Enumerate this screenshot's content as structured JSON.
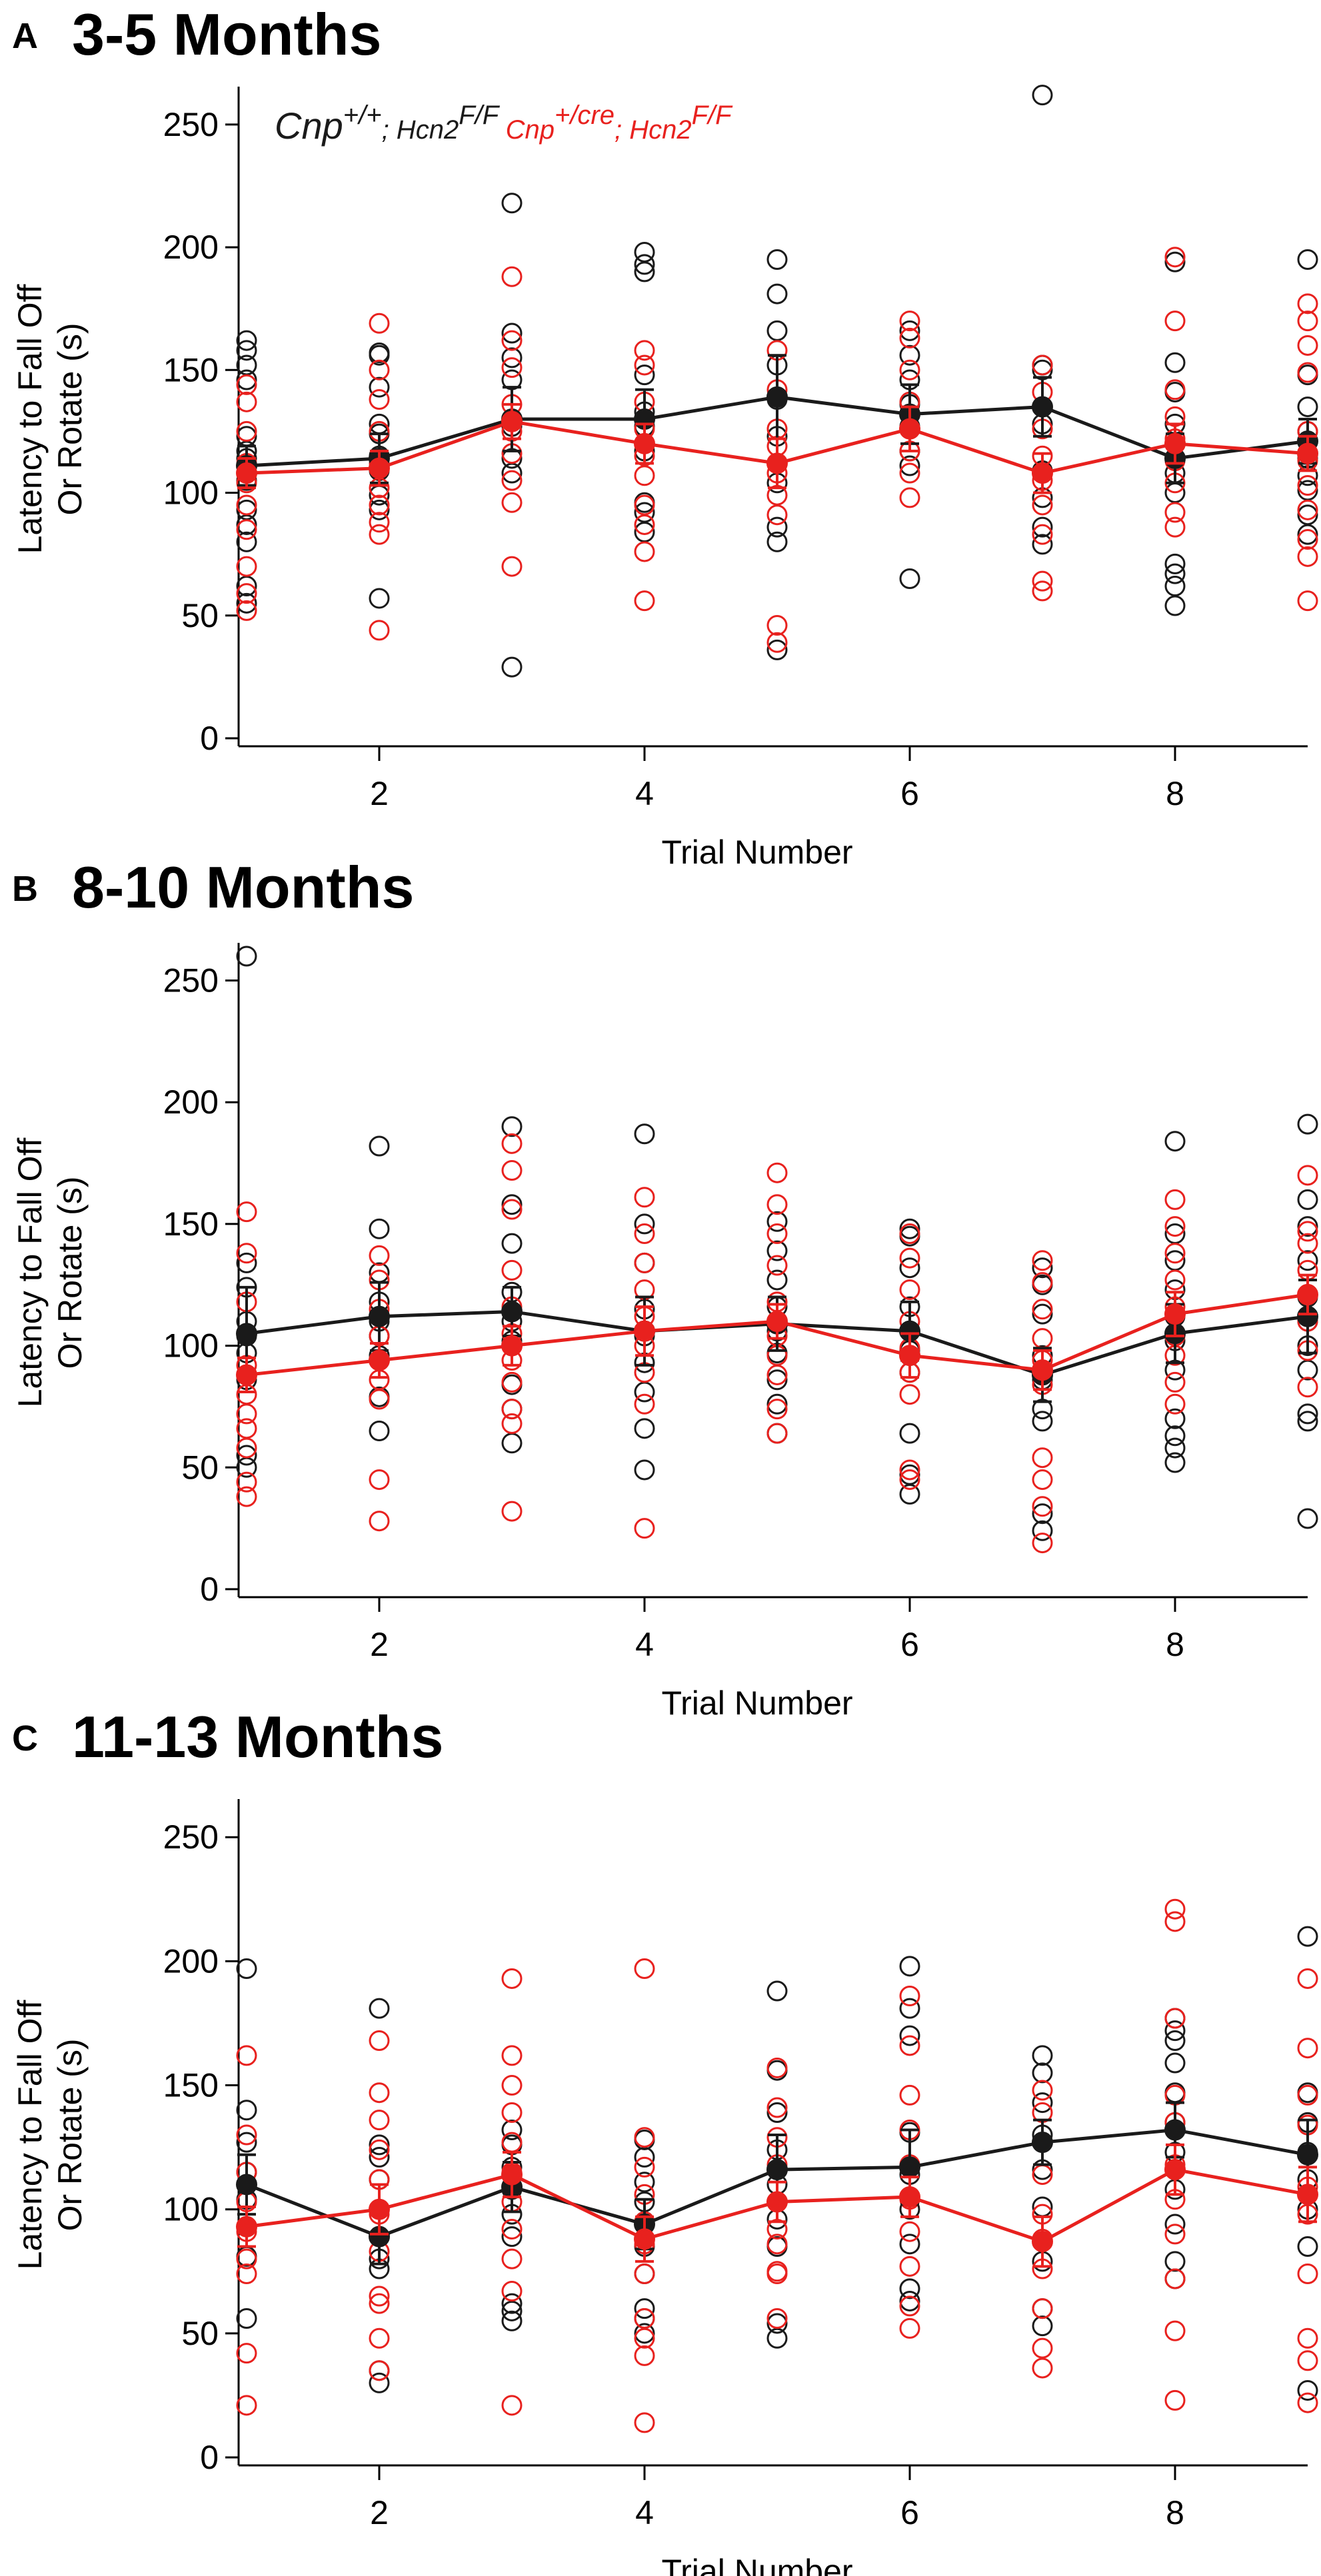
{
  "colors": {
    "control": "#1a1a1a",
    "cre": "#e8211e",
    "axis": "#000000"
  },
  "legend": {
    "series1": {
      "p1": "Cnp",
      "s1": "+/+",
      "p2": "; Hcn2",
      "s2": "F/F"
    },
    "series2": {
      "p1": "Cnp",
      "s1": "+/cre",
      "p2": "; Hcn2",
      "s2": "F/F"
    }
  },
  "chart_data": [
    {
      "type": "scatter",
      "panel_letter": "A",
      "title": "3-5 Months",
      "xlabel": "Trial Number",
      "ylabel_line1": "Latency to Fall Off",
      "ylabel_line2": "Or Rotate (s)",
      "xlim": [
        1,
        9
      ],
      "ylim": [
        0,
        260
      ],
      "xticks": [
        2,
        4,
        6,
        8
      ],
      "yticks": [
        0,
        50,
        100,
        150,
        200,
        250
      ],
      "series": [
        {
          "name": "Cnp+/+; Hcn2F/F",
          "color": "control",
          "means": [
            111,
            114,
            130,
            130,
            139,
            132,
            135,
            114,
            121
          ],
          "sem": [
            8,
            10,
            13,
            12,
            17,
            12,
            12,
            10,
            9
          ],
          "points": [
            [
              162,
              158,
              152,
              146,
              123,
              117,
              114,
              105,
              93,
              87,
              80,
              62,
              55
            ],
            [
              157,
              156,
              143,
              128,
              124,
              115,
              109,
              99,
              93,
              57
            ],
            [
              218,
              165,
              155,
              146,
              127,
              114,
              108,
              29
            ],
            [
              198,
              193,
              190,
              148,
              133,
              127,
              117,
              96,
              92,
              84
            ],
            [
              195,
              181,
              166,
              152,
              138,
              123,
              104,
              86,
              80,
              36
            ],
            [
              166,
              156,
              146,
              136,
              127,
              117,
              111,
              65
            ],
            [
              262,
              152,
              150,
              128,
              109,
              98,
              86,
              79
            ],
            [
              194,
              153,
              141,
              128,
              108,
              100,
              71,
              67,
              62,
              54
            ],
            [
              195,
              148,
              135,
              125,
              114,
              107,
              101,
              91,
              83
            ]
          ]
        },
        {
          "name": "Cnp+/cre; Hcn2F/F",
          "color": "cre",
          "means": [
            108,
            110,
            129,
            120,
            112,
            126,
            108,
            120,
            116
          ],
          "sem": [
            6,
            7,
            7,
            8,
            10,
            9,
            8,
            8,
            7
          ],
          "points": [
            [
              144,
              137,
              125,
              112,
              104,
              95,
              85,
              70,
              59,
              52
            ],
            [
              169,
              150,
              138,
              125,
              112,
              102,
              95,
              88,
              83,
              44
            ],
            [
              188,
              162,
              151,
              136,
              125,
              116,
              105,
              96,
              70
            ],
            [
              158,
              152,
              137,
              126,
              115,
              107,
              95,
              87,
              76,
              56
            ],
            [
              158,
              142,
              126,
              119,
              108,
              99,
              91,
              46,
              39
            ],
            [
              170,
              163,
              150,
              137,
              126,
              117,
              108,
              98
            ],
            [
              152,
              141,
              126,
              115,
              105,
              95,
              83,
              64,
              60
            ],
            [
              196,
              170,
              142,
              131,
              122,
              113,
              104,
              92,
              86
            ],
            [
              177,
              170,
              160,
              149,
              125,
              113,
              103,
              93,
              81,
              74,
              56
            ]
          ]
        }
      ]
    },
    {
      "type": "scatter",
      "panel_letter": "B",
      "title": "8-10 Months",
      "xlabel": "Trial Number",
      "ylabel_line1": "Latency to Fall Off",
      "ylabel_line2": "Or Rotate (s)",
      "xlim": [
        1,
        9
      ],
      "ylim": [
        0,
        260
      ],
      "xticks": [
        2,
        4,
        6,
        8
      ],
      "yticks": [
        0,
        50,
        100,
        150,
        200,
        250
      ],
      "series": [
        {
          "name": "Cnp+/+; Hcn2F/F",
          "color": "control",
          "means": [
            105,
            112,
            114,
            106,
            109,
            106,
            88,
            105,
            112
          ],
          "sem": [
            19,
            14,
            10,
            14,
            11,
            12,
            11,
            12,
            15
          ],
          "points": [
            [
              260,
              134,
              124,
              110,
              104,
              97,
              86,
              55,
              50
            ],
            [
              182,
              148,
              130,
              118,
              110,
              104,
              96,
              79,
              65
            ],
            [
              190,
              158,
              142,
              122,
              110,
              102,
              84,
              74,
              60
            ],
            [
              187,
              150,
              134,
              115,
              104,
              93,
              81,
              66,
              49
            ],
            [
              151,
              139,
              127,
              116,
              106,
              97,
              86,
              76,
              64
            ],
            [
              148,
              145,
              132,
              116,
              106,
              98,
              89,
              64,
              47,
              39
            ],
            [
              132,
              125,
              113,
              96,
              86,
              74,
              69,
              31,
              24
            ],
            [
              184,
              146,
              135,
              123,
              112,
              102,
              90,
              70,
              63,
              58,
              52
            ],
            [
              191,
              160,
              149,
              135,
              120,
              110,
              100,
              90,
              72,
              69,
              29
            ]
          ]
        },
        {
          "name": "Cnp+/cre; Hcn2F/F",
          "color": "cre",
          "means": [
            88,
            94,
            100,
            106,
            110,
            96,
            90,
            113,
            121
          ],
          "sem": [
            7,
            7,
            8,
            10,
            7,
            9,
            8,
            9,
            8
          ],
          "points": [
            [
              155,
              138,
              118,
              92,
              80,
              72,
              66,
              58,
              44,
              38
            ],
            [
              137,
              127,
              115,
              104,
              94,
              86,
              78,
              45,
              28
            ],
            [
              183,
              172,
              156,
              131,
              116,
              105,
              94,
              85,
              74,
              68,
              32
            ],
            [
              161,
              146,
              134,
              123,
              112,
              100,
              89,
              76,
              25
            ],
            [
              171,
              158,
              146,
              133,
              118,
              104,
              96,
              88,
              74,
              64
            ],
            [
              146,
              136,
              123,
              110,
              99,
              89,
              80,
              49,
              45
            ],
            [
              135,
              126,
              115,
              103,
              94,
              84,
              54,
              45,
              34,
              19
            ],
            [
              160,
              149,
              138,
              127,
              116,
              104,
              96,
              85,
              76
            ],
            [
              170,
              147,
              142,
              131,
              121,
              110,
              98,
              83
            ]
          ]
        }
      ]
    },
    {
      "type": "scatter",
      "panel_letter": "C",
      "title": "11-13 Months",
      "xlabel": "Trial Number",
      "ylabel_line1": "Latency to Fall Off",
      "ylabel_line2": "Or Rotate (s)",
      "xlim": [
        1,
        9
      ],
      "ylim": [
        0,
        260
      ],
      "xticks": [
        2,
        4,
        6,
        8
      ],
      "yticks": [
        0,
        50,
        100,
        150,
        200,
        250
      ],
      "series": [
        {
          "name": "Cnp+/+; Hcn2F/F",
          "color": "control",
          "means": [
            110,
            89,
            109,
            94,
            116,
            117,
            127,
            132,
            122
          ],
          "sem": [
            12,
            11,
            10,
            10,
            14,
            15,
            9,
            11,
            14
          ],
          "points": [
            [
              197,
              140,
              127,
              115,
              104,
              93,
              81,
              56
            ],
            [
              181,
              126,
              121,
              112,
              100,
              80,
              76,
              35,
              30
            ],
            [
              132,
              126,
              117,
              108,
              98,
              89,
              62,
              59,
              55
            ],
            [
              128,
              121,
              111,
              103,
              95,
              85,
              74,
              60,
              56,
              50
            ],
            [
              188,
              156,
              139,
              124,
              110,
              96,
              85,
              54,
              48
            ],
            [
              198,
              181,
              170,
              131,
              114,
              100,
              86,
              68,
              63
            ],
            [
              162,
              155,
              143,
              130,
              116,
              101,
              79,
              60,
              53
            ],
            [
              177,
              172,
              168,
              159,
              147,
              135,
              123,
              108,
              94,
              79,
              72
            ],
            [
              210,
              147,
              135,
              123,
              112,
              100,
              85,
              27
            ]
          ]
        },
        {
          "name": "Cnp+/cre; Hcn2F/F",
          "color": "cre",
          "means": [
            93,
            100,
            114,
            88,
            103,
            105,
            87,
            116,
            106
          ],
          "sem": [
            8,
            10,
            9,
            9,
            8,
            8,
            10,
            10,
            11
          ],
          "points": [
            [
              162,
              130,
              115,
              103,
              91,
              80,
              74,
              42,
              21
            ],
            [
              168,
              147,
              136,
              124,
              112,
              98,
              83,
              65,
              62,
              48,
              35
            ],
            [
              193,
              162,
              150,
              139,
              127,
              115,
              103,
              92,
              80,
              67,
              21
            ],
            [
              197,
              129,
              117,
              106,
              95,
              86,
              74,
              56,
              48,
              41,
              14
            ],
            [
              157,
              141,
              129,
              118,
              103,
              92,
              86,
              75,
              74,
              56
            ],
            [
              186,
              166,
              146,
              132,
              118,
              104,
              91,
              77,
              61,
              52
            ],
            [
              148,
              139,
              127,
              114,
              98,
              88,
              76,
              60,
              44,
              36
            ],
            [
              221,
              216,
              177,
              146,
              135,
              118,
              104,
              90,
              72,
              51,
              23
            ],
            [
              193,
              165,
              146,
              134,
              122,
              109,
              98,
              74,
              48,
              39,
              22
            ]
          ]
        }
      ]
    }
  ]
}
